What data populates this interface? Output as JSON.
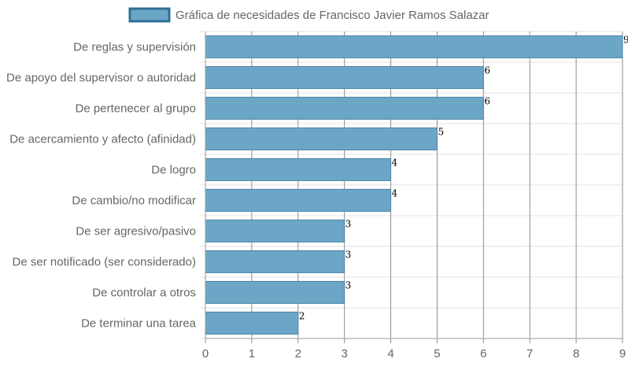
{
  "chart_data": {
    "type": "bar",
    "orientation": "horizontal",
    "categories": [
      "De reglas y supervisión",
      "De apoyo del supervisor o autoridad",
      "De pertenecer al grupo",
      "De acercamiento y afecto (afinidad)",
      "De logro",
      "De cambio/no modificar",
      "De ser agresivo/pasivo",
      "De ser notificado (ser considerado)",
      "De controlar a otros",
      "De terminar una tarea"
    ],
    "series": [
      {
        "name": "Gráfica de necesidades de Francisco Javier Ramos Salazar",
        "values": [
          9,
          6,
          6,
          5,
          4,
          4,
          3,
          3,
          3,
          2
        ]
      }
    ],
    "x_ticks": [
      "0",
      "1",
      "2",
      "3",
      "4",
      "5",
      "6",
      "7",
      "8",
      "9"
    ],
    "xlim": [
      0,
      9
    ],
    "grid": true,
    "legend_position": "top",
    "data_labels": true,
    "colors": {
      "bar_fill": "#6ca6c6",
      "bar_stroke": "#4f86a8",
      "legend_fill": "#6ca6c6",
      "legend_stroke": "#2e6f96",
      "grid": "#e3e3e3",
      "grid_vertical": "#8f8f8f",
      "axis": "#9a9a9a"
    }
  }
}
